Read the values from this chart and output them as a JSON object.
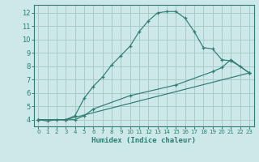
{
  "title": "",
  "xlabel": "Humidex (Indice chaleur)",
  "bg_color": "#cce8e8",
  "grid_color": "#aacaca",
  "line_color": "#2e7d6e",
  "xlim": [
    -0.5,
    23.5
  ],
  "ylim": [
    3.5,
    12.6
  ],
  "yticks": [
    4,
    5,
    6,
    7,
    8,
    9,
    10,
    11,
    12
  ],
  "xticks": [
    0,
    1,
    2,
    3,
    4,
    5,
    6,
    7,
    8,
    9,
    10,
    11,
    12,
    13,
    14,
    15,
    16,
    17,
    18,
    19,
    20,
    21,
    22,
    23
  ],
  "line1_x": [
    0,
    1,
    2,
    3,
    4,
    5,
    6,
    7,
    8,
    9,
    10,
    11,
    12,
    13,
    14,
    15,
    16,
    17,
    18,
    19,
    20,
    21,
    22,
    23
  ],
  "line1_y": [
    4.0,
    3.9,
    4.0,
    4.0,
    4.3,
    5.6,
    6.5,
    7.2,
    8.1,
    8.8,
    9.5,
    10.6,
    11.4,
    12.0,
    12.1,
    12.1,
    11.6,
    10.6,
    9.4,
    9.3,
    8.5,
    8.4,
    8.0,
    7.5
  ],
  "line2_x": [
    0,
    3,
    4,
    5,
    6,
    10,
    15,
    19,
    20,
    21,
    23
  ],
  "line2_y": [
    4.0,
    4.0,
    4.0,
    4.3,
    4.8,
    5.8,
    6.6,
    7.6,
    7.9,
    8.5,
    7.5
  ],
  "line3_x": [
    0,
    3,
    23
  ],
  "line3_y": [
    4.0,
    4.0,
    7.5
  ],
  "xlabel_fontsize": 6.5,
  "tick_fontsize_x": 5.0,
  "tick_fontsize_y": 6.0
}
